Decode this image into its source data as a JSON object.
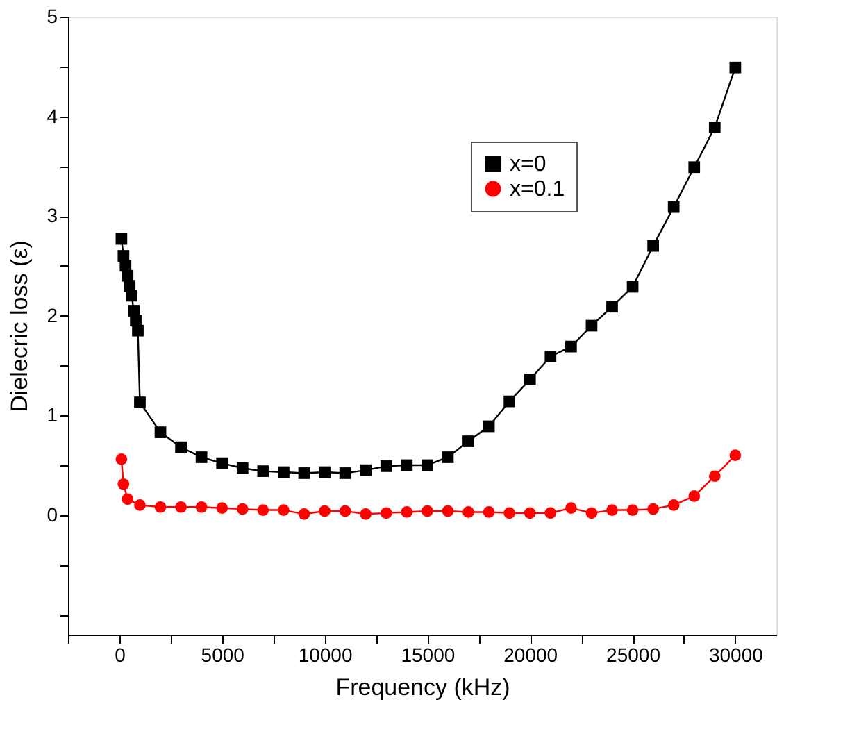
{
  "chart_data": {
    "type": "line",
    "xlabel": "Frequency (kHz)",
    "ylabel": "Dielecric loss (ε)",
    "xlim": [
      -2500,
      32000
    ],
    "ylim": [
      -1.2,
      5
    ],
    "xticks": [
      {
        "value": -2500,
        "label": null
      },
      0,
      {
        "value": 2500,
        "label": null
      },
      5000,
      {
        "value": 7500,
        "label": null
      },
      10000,
      {
        "value": 12500,
        "label": null
      },
      15000,
      {
        "value": 17500,
        "label": null
      },
      20000,
      {
        "value": 22500,
        "label": null
      },
      25000,
      {
        "value": 27500,
        "label": null
      },
      30000
    ],
    "yticks": [
      {
        "value": -1,
        "label": null
      },
      {
        "value": -0.5,
        "label": null
      },
      0,
      {
        "value": 0.5,
        "label": null
      },
      1,
      {
        "value": 1.5,
        "label": null
      },
      2,
      {
        "value": 2.5,
        "label": null
      },
      3,
      {
        "value": 3.5,
        "label": null
      },
      4,
      {
        "value": 4.5,
        "label": null
      },
      5
    ],
    "grid": false,
    "legend": "top right",
    "line_style": "solid",
    "series": [
      {
        "name": "x=0",
        "color": "#000000",
        "marker": "square",
        "x": [
          100,
          200,
          300,
          400,
          500,
          600,
          700,
          800,
          900,
          1000,
          2000,
          3000,
          4000,
          5000,
          6000,
          7000,
          8000,
          9000,
          10000,
          11000,
          12000,
          13000,
          14000,
          15000,
          16000,
          17000,
          18000,
          19000,
          20000,
          21000,
          22000,
          23000,
          24000,
          25000,
          26000,
          27000,
          28000,
          29000,
          30000
        ],
        "values": [
          2.77,
          2.6,
          2.5,
          2.4,
          2.3,
          2.2,
          2.05,
          1.95,
          1.85,
          1.13,
          0.83,
          0.68,
          0.58,
          0.52,
          0.47,
          0.44,
          0.43,
          0.42,
          0.43,
          0.42,
          0.45,
          0.49,
          0.5,
          0.5,
          0.58,
          0.74,
          0.89,
          1.14,
          1.36,
          1.59,
          1.69,
          1.9,
          2.09,
          2.29,
          2.7,
          3.09,
          3.49,
          3.89,
          4.49
        ]
      },
      {
        "name": "x=0.1",
        "color": "#ff0000",
        "marker": "circle",
        "x": [
          100,
          200,
          400,
          1000,
          2000,
          3000,
          4000,
          5000,
          6000,
          7000,
          8000,
          9000,
          10000,
          11000,
          12000,
          13000,
          14000,
          15000,
          16000,
          17000,
          18000,
          19000,
          20000,
          21000,
          22000,
          23000,
          24000,
          25000,
          26000,
          27000,
          28000,
          29000,
          30000
        ],
        "values": [
          0.56,
          0.31,
          0.16,
          0.1,
          0.08,
          0.08,
          0.08,
          0.07,
          0.06,
          0.05,
          0.05,
          0.01,
          0.04,
          0.04,
          0.01,
          0.02,
          0.03,
          0.04,
          0.04,
          0.03,
          0.03,
          0.02,
          0.02,
          0.02,
          0.07,
          0.02,
          0.05,
          0.05,
          0.06,
          0.1,
          0.19,
          0.39,
          0.6
        ]
      }
    ]
  }
}
